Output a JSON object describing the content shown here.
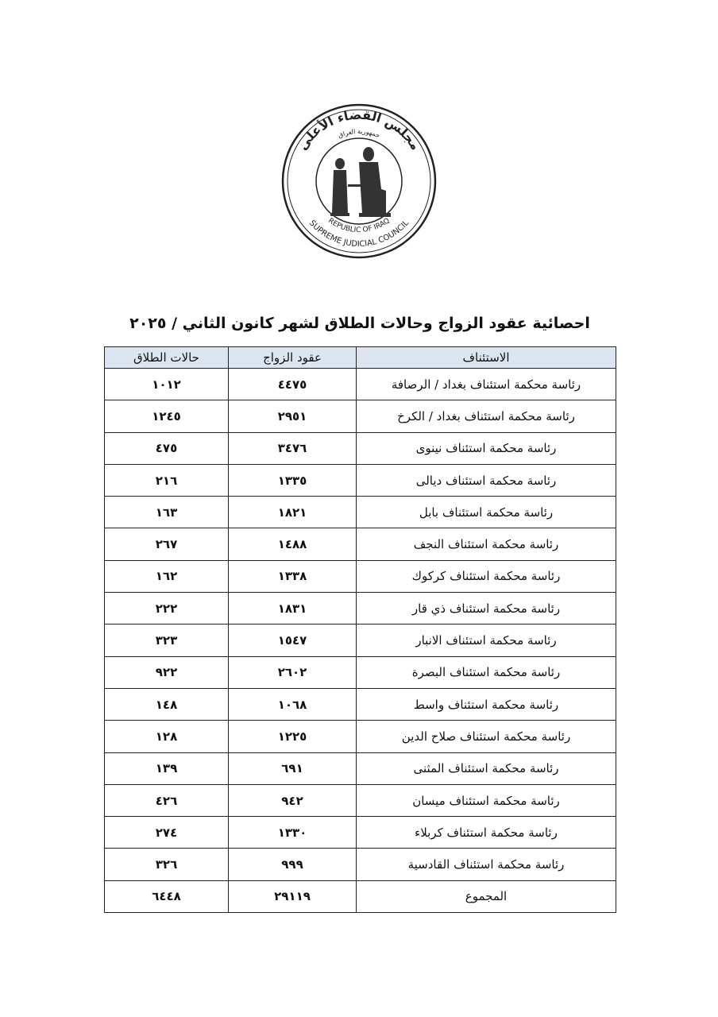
{
  "logo": {
    "arabic_top": "جمهورية العراق",
    "arabic_main": "مجلس القضاء الأعلى",
    "english_top": "REPUBLIC OF IRAQ",
    "english_bottom": "SUPREME JUDICIAL COUNCIL"
  },
  "title": "احصائية عقود الزواج وحالات الطلاق لشهر كانون الثاني / ٢٠٢٥",
  "table": {
    "headers": [
      "الاستئناف",
      "عقود الزواج",
      "حالات الطلاق"
    ],
    "rows": [
      {
        "court": "رئاسة محكمة استئناف بغداد / الرصافة",
        "marriages": "٤٤٧٥",
        "divorces": "١٠١٢"
      },
      {
        "court": "رئاسة محكمة استئناف بغداد / الكرخ",
        "marriages": "٢٩٥١",
        "divorces": "١٢٤٥"
      },
      {
        "court": "رئاسة محكمة استئناف نينوى",
        "marriages": "٣٤٧٦",
        "divorces": "٤٧٥"
      },
      {
        "court": "رئاسة محكمة استئناف ديالى",
        "marriages": "١٣٣٥",
        "divorces": "٢١٦"
      },
      {
        "court": "رئاسة محكمة استئناف بابل",
        "marriages": "١٨٢١",
        "divorces": "١٦٣"
      },
      {
        "court": "رئاسة محكمة استئناف النجف",
        "marriages": "١٤٨٨",
        "divorces": "٢٦٧"
      },
      {
        "court": "رئاسة محكمة استئناف كركوك",
        "marriages": "١٣٣٨",
        "divorces": "١٦٢"
      },
      {
        "court": "رئاسة محكمة استئناف ذي قار",
        "marriages": "١٨٣١",
        "divorces": "٢٢٢"
      },
      {
        "court": "رئاسة محكمة استئناف الانبار",
        "marriages": "١٥٤٧",
        "divorces": "٣٢٣"
      },
      {
        "court": "رئاسة محكمة استئناف البصرة",
        "marriages": "٢٦٠٢",
        "divorces": "٩٢٢"
      },
      {
        "court": "رئاسة محكمة استئناف واسط",
        "marriages": "١٠٦٨",
        "divorces": "١٤٨"
      },
      {
        "court": "رئاسة محكمة استئناف صلاح الدين",
        "marriages": "١٢٢٥",
        "divorces": "١٢٨"
      },
      {
        "court": "رئاسة محكمة استئناف المثنى",
        "marriages": "٦٩١",
        "divorces": "١٣٩"
      },
      {
        "court": "رئاسة محكمة استئناف ميسان",
        "marriages": "٩٤٢",
        "divorces": "٤٢٦"
      },
      {
        "court": "رئاسة محكمة استئناف كربلاء",
        "marriages": "١٣٣٠",
        "divorces": "٢٧٤"
      },
      {
        "court": "رئاسة محكمة استئناف القادسية",
        "marriages": "٩٩٩",
        "divorces": "٣٢٦"
      }
    ],
    "total": {
      "label": "المجموع",
      "marriages": "٢٩١١٩",
      "divorces": "٦٤٤٨"
    }
  }
}
